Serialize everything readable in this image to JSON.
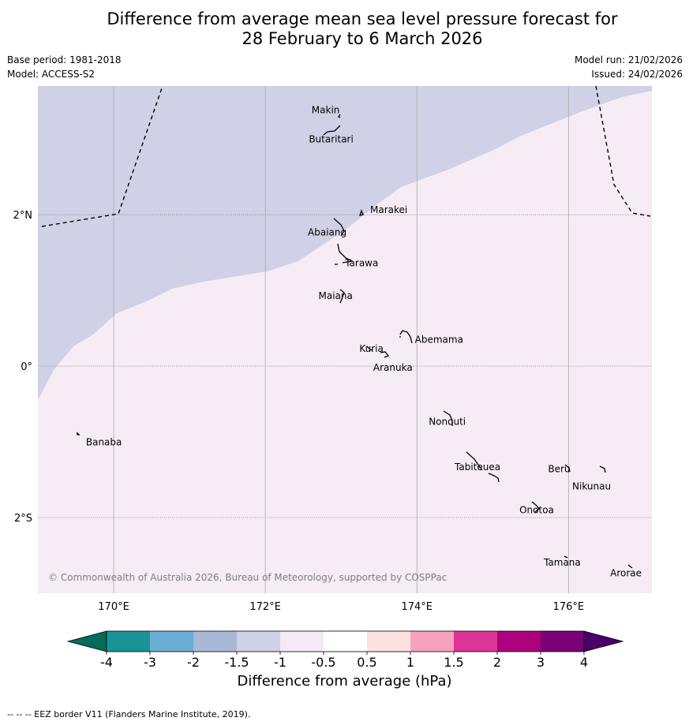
{
  "title_line1": "Difference from average mean sea level pressure forecast for",
  "title_line2": "28 February to 6 March 2026",
  "base_period": "Base period: 1981-2018",
  "model": "Model: ACCESS-S2",
  "model_run": "Model run: 21/02/2026",
  "issued": "Issued: 24/02/2026",
  "copyright": "© Commonwealth of Australia 2026, Bureau of Meteorology, supported by COSPPac",
  "footnote": "--  --  -- EEZ border V11 (Flanders Marine Institute, 2019).",
  "colorbar": {
    "label": "Difference from average (hPa)",
    "ticks": [
      "-4",
      "-3",
      "-2",
      "-1.5",
      "-1",
      "-0.5",
      "0.5",
      "1",
      "1.5",
      "2",
      "3",
      "4"
    ],
    "colors": [
      "#1a9396",
      "#6aaed6",
      "#a8b9d8",
      "#d0d1e6",
      "#f3eaf5",
      "#ffffff",
      "#fde0e0",
      "#f8a1bc",
      "#dd3497",
      "#ae017e",
      "#7a0177"
    ],
    "under_color": "#016c59",
    "over_color": "#49006a"
  },
  "colors": {
    "negative_region": "#d0d1e6",
    "near_zero_region": "#f5ecf5",
    "grid": "#aaaaaa",
    "coast": "#000000"
  },
  "axes": {
    "lon_labels": [
      {
        "lon": 170,
        "label": "170°E"
      },
      {
        "lon": 172,
        "label": "172°E"
      },
      {
        "lon": 174,
        "label": "174°E"
      },
      {
        "lon": 176,
        "label": "176°E"
      }
    ],
    "lat_labels": [
      {
        "lat": 2,
        "label": "2°N"
      },
      {
        "lat": 0,
        "label": "0°"
      },
      {
        "lat": -2,
        "label": "2°S"
      }
    ],
    "lon_range": [
      169.0,
      177.1
    ],
    "lat_range": [
      -3.0,
      3.7
    ]
  },
  "islands": [
    {
      "name": "Makin",
      "lon": 172.9,
      "lat": 3.38
    },
    {
      "name": "Butaritari",
      "lon": 172.9,
      "lat": 3.07
    },
    {
      "name": "Marakei",
      "lon": 173.3,
      "lat": 2.02
    },
    {
      "name": "Abaiang",
      "lon": 172.9,
      "lat": 1.8
    },
    {
      "name": "Tarawa",
      "lon": 173.0,
      "lat": 1.4
    },
    {
      "name": "Maiana",
      "lon": 173.0,
      "lat": 0.95
    },
    {
      "name": "Abemama",
      "lon": 173.9,
      "lat": 0.4
    },
    {
      "name": "Kuria",
      "lon": 173.4,
      "lat": 0.23
    },
    {
      "name": "Aranuka",
      "lon": 173.6,
      "lat": 0.17
    },
    {
      "name": "Nonouti",
      "lon": 174.4,
      "lat": -0.67
    },
    {
      "name": "Banaba",
      "lon": 169.54,
      "lat": -0.88
    },
    {
      "name": "Tabiteuea",
      "lon": 174.8,
      "lat": -1.3
    },
    {
      "name": "Beru",
      "lon": 175.98,
      "lat": -1.33
    },
    {
      "name": "Nikunau",
      "lon": 176.45,
      "lat": -1.36
    },
    {
      "name": "Onotoa",
      "lon": 175.58,
      "lat": -1.85
    },
    {
      "name": "Tamana",
      "lon": 175.98,
      "lat": -2.5
    },
    {
      "name": "Arorae",
      "lon": 176.82,
      "lat": -2.64
    }
  ]
}
